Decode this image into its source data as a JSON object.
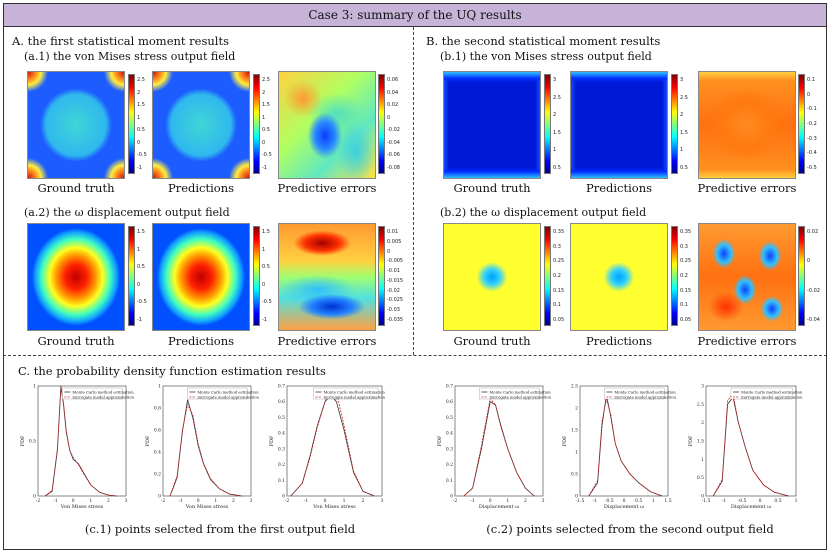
{
  "header": {
    "title": "Case 3: summary of the UQ results"
  },
  "sectionA": {
    "title": "A. the first statistical moment results",
    "sub1": "(a.1) the von Mises stress output field",
    "sub2": "(a.2) the ω displacement output field"
  },
  "sectionB": {
    "title": "B. the second statistical moment results",
    "sub1": "(b.1) the von Mises stress output field",
    "sub2": "(b.2) the ω displacement output field"
  },
  "captions": {
    "gt": "Ground truth",
    "pred": "Predictions",
    "err": "Predictive errors"
  },
  "colorbars": {
    "a1": [
      "2.5",
      "2",
      "1.5",
      "1",
      "0.5",
      "0",
      "-0.5",
      "-1"
    ],
    "a1e": [
      "0.06",
      "0.04",
      "0.02",
      "0",
      "-0.02",
      "-0.04",
      "-0.06",
      "-0.08"
    ],
    "a2": [
      "1.5",
      "1",
      "0.5",
      "0",
      "-0.5",
      "-1"
    ],
    "a2e": [
      "0.01",
      "0.005",
      "0",
      "-0.005",
      "-0.01",
      "-0.015",
      "-0.02",
      "-0.025",
      "-0.03",
      "-0.035"
    ],
    "b1": [
      "3",
      "2.5",
      "2",
      "1.5",
      "1",
      "0.5"
    ],
    "b1e": [
      "0.1",
      "0",
      "-0.1",
      "-0.2",
      "-0.3",
      "-0.4",
      "-0.5"
    ],
    "b2": [
      "0.35",
      "0.3",
      "0.25",
      "0.2",
      "0.15",
      "0.1",
      "0.05"
    ],
    "b2e": [
      "0.02",
      "0",
      "-0.02",
      "-0.04"
    ]
  },
  "sectionC": {
    "title": "C. the probability density function estimation results",
    "cap1": "(c.1) points selected from the first output field",
    "cap2": "(c.2) points selected from the second output field",
    "legend_mc": "Monte Carlo method estimation",
    "legend_sm": "Surrogate model approximation",
    "ylabel": "PDF"
  },
  "chart_data": [
    {
      "type": "line",
      "xlabel": "Von Mises stress",
      "ylabel": "PDF",
      "xlim": [
        -2,
        3
      ],
      "ylim": [
        0,
        1.2
      ],
      "xticks": [
        "-2",
        "-1",
        "0",
        "1",
        "2",
        "3"
      ],
      "yticks": [
        "0",
        "0.5",
        "1"
      ],
      "series": [
        {
          "name": "Monte Carlo method estimation",
          "x": [
            -1.6,
            -1.2,
            -0.9,
            -0.7,
            -0.55,
            -0.4,
            -0.2,
            0,
            0.3,
            0.6,
            1,
            1.5,
            2,
            2.5
          ],
          "values": [
            0,
            0.05,
            0.5,
            1.2,
            1.0,
            0.7,
            0.5,
            0.4,
            0.35,
            0.25,
            0.12,
            0.04,
            0.01,
            0
          ]
        },
        {
          "name": "Surrogate model approximation",
          "x": [
            -1.6,
            -1.2,
            -0.9,
            -0.7,
            -0.55,
            -0.4,
            -0.2,
            0,
            0.3,
            0.6,
            1,
            1.5,
            2,
            2.5
          ],
          "values": [
            0,
            0.06,
            0.52,
            1.18,
            1.02,
            0.72,
            0.5,
            0.42,
            0.34,
            0.24,
            0.12,
            0.04,
            0.01,
            0
          ]
        }
      ]
    },
    {
      "type": "line",
      "xlabel": "Von Mises stress",
      "ylabel": "PDF",
      "xlim": [
        -2,
        3
      ],
      "ylim": [
        0,
        1.2
      ],
      "xticks": [
        "-2",
        "-1",
        "0",
        "1",
        "2",
        "3"
      ],
      "yticks": [
        "0",
        "0.2",
        "0.4",
        "0.6",
        "0.8",
        "1"
      ],
      "series": [
        {
          "name": "Monte Carlo method estimation",
          "x": [
            -1.6,
            -1.2,
            -0.9,
            -0.6,
            -0.3,
            0,
            0.3,
            0.7,
            1.2,
            1.8,
            2.5
          ],
          "values": [
            0,
            0.2,
            0.7,
            1.05,
            0.85,
            0.55,
            0.35,
            0.18,
            0.08,
            0.02,
            0
          ]
        },
        {
          "name": "Surrogate model approximation",
          "x": [
            -1.6,
            -1.2,
            -0.9,
            -0.6,
            -0.3,
            0,
            0.3,
            0.7,
            1.2,
            1.8,
            2.5
          ],
          "values": [
            0,
            0.22,
            0.72,
            1.0,
            0.88,
            0.57,
            0.36,
            0.19,
            0.08,
            0.02,
            0
          ]
        }
      ]
    },
    {
      "type": "line",
      "xlabel": "Von Mises stress",
      "ylabel": "PDF",
      "xlim": [
        -2,
        3
      ],
      "ylim": [
        0,
        0.7
      ],
      "xticks": [
        "-2",
        "-1",
        "0",
        "1",
        "2",
        "3"
      ],
      "yticks": [
        "0",
        "0.1",
        "0.2",
        "0.3",
        "0.4",
        "0.5",
        "0.6",
        "0.7"
      ],
      "series": [
        {
          "name": "Monte Carlo method estimation",
          "x": [
            -1.8,
            -1.2,
            -0.8,
            -0.4,
            0,
            0.3,
            0.6,
            1,
            1.5,
            2,
            2.6
          ],
          "values": [
            0,
            0.08,
            0.25,
            0.45,
            0.6,
            0.64,
            0.6,
            0.42,
            0.15,
            0.03,
            0
          ]
        },
        {
          "name": "Surrogate model approximation",
          "x": [
            -1.8,
            -1.2,
            -0.8,
            -0.4,
            0,
            0.3,
            0.6,
            1,
            1.5,
            2,
            2.6
          ],
          "values": [
            0,
            0.08,
            0.24,
            0.44,
            0.6,
            0.68,
            0.66,
            0.45,
            0.16,
            0.03,
            0
          ]
        }
      ]
    },
    {
      "type": "line",
      "xlabel": "Displacement ω",
      "ylabel": "PDF",
      "xlim": [
        -2,
        3
      ],
      "ylim": [
        0,
        0.7
      ],
      "xticks": [
        "-2",
        "-1",
        "0",
        "1",
        "2",
        "3"
      ],
      "yticks": [
        "0",
        "0.1",
        "0.2",
        "0.3",
        "0.4",
        "0.5",
        "0.6",
        "0.7"
      ],
      "series": [
        {
          "name": "Monte Carlo method estimation",
          "x": [
            -1.5,
            -1,
            -0.5,
            0,
            0.3,
            0.6,
            1,
            1.5,
            2,
            2.5
          ],
          "values": [
            0,
            0.05,
            0.3,
            0.6,
            0.58,
            0.45,
            0.3,
            0.15,
            0.05,
            0
          ]
        },
        {
          "name": "Surrogate model approximation",
          "x": [
            -1.5,
            -1,
            -0.5,
            0,
            0.3,
            0.6,
            1,
            1.5,
            2,
            2.5
          ],
          "values": [
            0,
            0.05,
            0.32,
            0.62,
            0.58,
            0.44,
            0.3,
            0.15,
            0.05,
            0
          ]
        }
      ]
    },
    {
      "type": "line",
      "xlabel": "Displacement ω",
      "ylabel": "PDF",
      "xlim": [
        -1.5,
        1.5
      ],
      "ylim": [
        0,
        2.5
      ],
      "xticks": [
        "-1.5",
        "-1",
        "-0.5",
        "0",
        "0.5",
        "1",
        "1.5"
      ],
      "yticks": [
        "0",
        "0.5",
        "1",
        "1.5",
        "2",
        "2.5"
      ],
      "series": [
        {
          "name": "Monte Carlo method estimation",
          "x": [
            -1.2,
            -0.9,
            -0.75,
            -0.6,
            -0.45,
            -0.3,
            -0.1,
            0.2,
            0.5,
            0.9,
            1.3
          ],
          "values": [
            0,
            0.3,
            1.6,
            2.3,
            1.8,
            1.2,
            0.8,
            0.5,
            0.3,
            0.1,
            0
          ]
        },
        {
          "name": "Surrogate model approximation",
          "x": [
            -1.2,
            -0.9,
            -0.75,
            -0.6,
            -0.45,
            -0.3,
            -0.1,
            0.2,
            0.5,
            0.9,
            1.3
          ],
          "values": [
            0,
            0.35,
            1.7,
            2.2,
            1.85,
            1.2,
            0.8,
            0.5,
            0.3,
            0.1,
            0
          ]
        }
      ]
    },
    {
      "type": "line",
      "xlabel": "Displacement ω",
      "ylabel": "PDF",
      "xlim": [
        -1.5,
        1
      ],
      "ylim": [
        0,
        3
      ],
      "xticks": [
        "-1.5",
        "-1",
        "-0.5",
        "0",
        "0.5",
        "1"
      ],
      "yticks": [
        "0",
        "0.5",
        "1",
        "1.5",
        "2",
        "2.5",
        "3"
      ],
      "series": [
        {
          "name": "Monte Carlo method estimation",
          "x": [
            -1.3,
            -1.05,
            -0.9,
            -0.75,
            -0.6,
            -0.4,
            -0.2,
            0.1,
            0.4,
            0.8
          ],
          "values": [
            0,
            0.4,
            2.5,
            2.7,
            2.0,
            1.3,
            0.7,
            0.3,
            0.1,
            0
          ]
        },
        {
          "name": "Surrogate model approximation",
          "x": [
            -1.3,
            -1.05,
            -0.9,
            -0.75,
            -0.6,
            -0.4,
            -0.2,
            0.1,
            0.4,
            0.8
          ],
          "values": [
            0,
            0.45,
            2.6,
            2.8,
            2.0,
            1.3,
            0.7,
            0.3,
            0.1,
            0
          ]
        }
      ]
    }
  ]
}
